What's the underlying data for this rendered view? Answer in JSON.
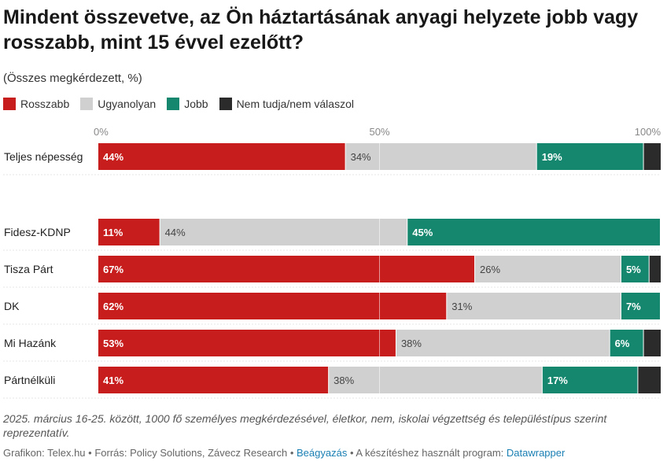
{
  "title": "Mindent összevetve, az Ön háztartásának anyagi helyzete jobb vagy rosszabb, mint 15 évvel ezelőtt?",
  "subtitle": "(Összes megkérdezett, %)",
  "legend": [
    {
      "label": "Rosszabb",
      "color": "#c71e1d"
    },
    {
      "label": "Ugyanolyan",
      "color": "#d0d0d0"
    },
    {
      "label": "Jobb",
      "color": "#15876e"
    },
    {
      "label": "Nem tudja/nem válaszol",
      "color": "#2b2b2b"
    }
  ],
  "chart_data": {
    "type": "bar",
    "orientation": "horizontal",
    "stacked": true,
    "xlim": [
      0,
      100
    ],
    "x_ticks": [
      "0%",
      "50%",
      "100%"
    ],
    "categories": [
      "Teljes népesség",
      "Fidesz-KDNP",
      "Tisza Párt",
      "DK",
      "Mi Hazánk",
      "Pártnélküli"
    ],
    "series": [
      {
        "name": "Rosszabb",
        "color": "#c71e1d",
        "values": [
          44,
          11,
          67,
          62,
          53,
          41
        ]
      },
      {
        "name": "Ugyanolyan",
        "color": "#d0d0d0",
        "values": [
          34,
          44,
          26,
          31,
          38,
          38
        ]
      },
      {
        "name": "Jobb",
        "color": "#15876e",
        "values": [
          19,
          45,
          5,
          7,
          6,
          17
        ]
      },
      {
        "name": "Nem tudja/nem válaszol",
        "color": "#2b2b2b",
        "values": [
          3,
          1,
          2,
          0,
          3,
          4
        ]
      }
    ],
    "data_labels": [
      [
        "44%",
        "34%",
        "19%",
        ""
      ],
      [
        "11%",
        "44%",
        "45%",
        ""
      ],
      [
        "67%",
        "26%",
        "5%",
        ""
      ],
      [
        "62%",
        "31%",
        "7%",
        ""
      ],
      [
        "53%",
        "38%",
        "6%",
        ""
      ],
      [
        "41%",
        "38%",
        "17%",
        ""
      ]
    ]
  },
  "note": "2025. március 16-25. között, 1000 fő személyes megkérdezésével, életkor, nem, iskolai végzettség és településtípus szerint reprezentatív.",
  "footer": {
    "credit": "Grafikon: Telex.hu • Forrás: Policy Solutions, Závecz Research • ",
    "embed_link": "Beágyazás",
    "program_text": " • A készítéshez használt program: ",
    "program_link": "Datawrapper"
  }
}
